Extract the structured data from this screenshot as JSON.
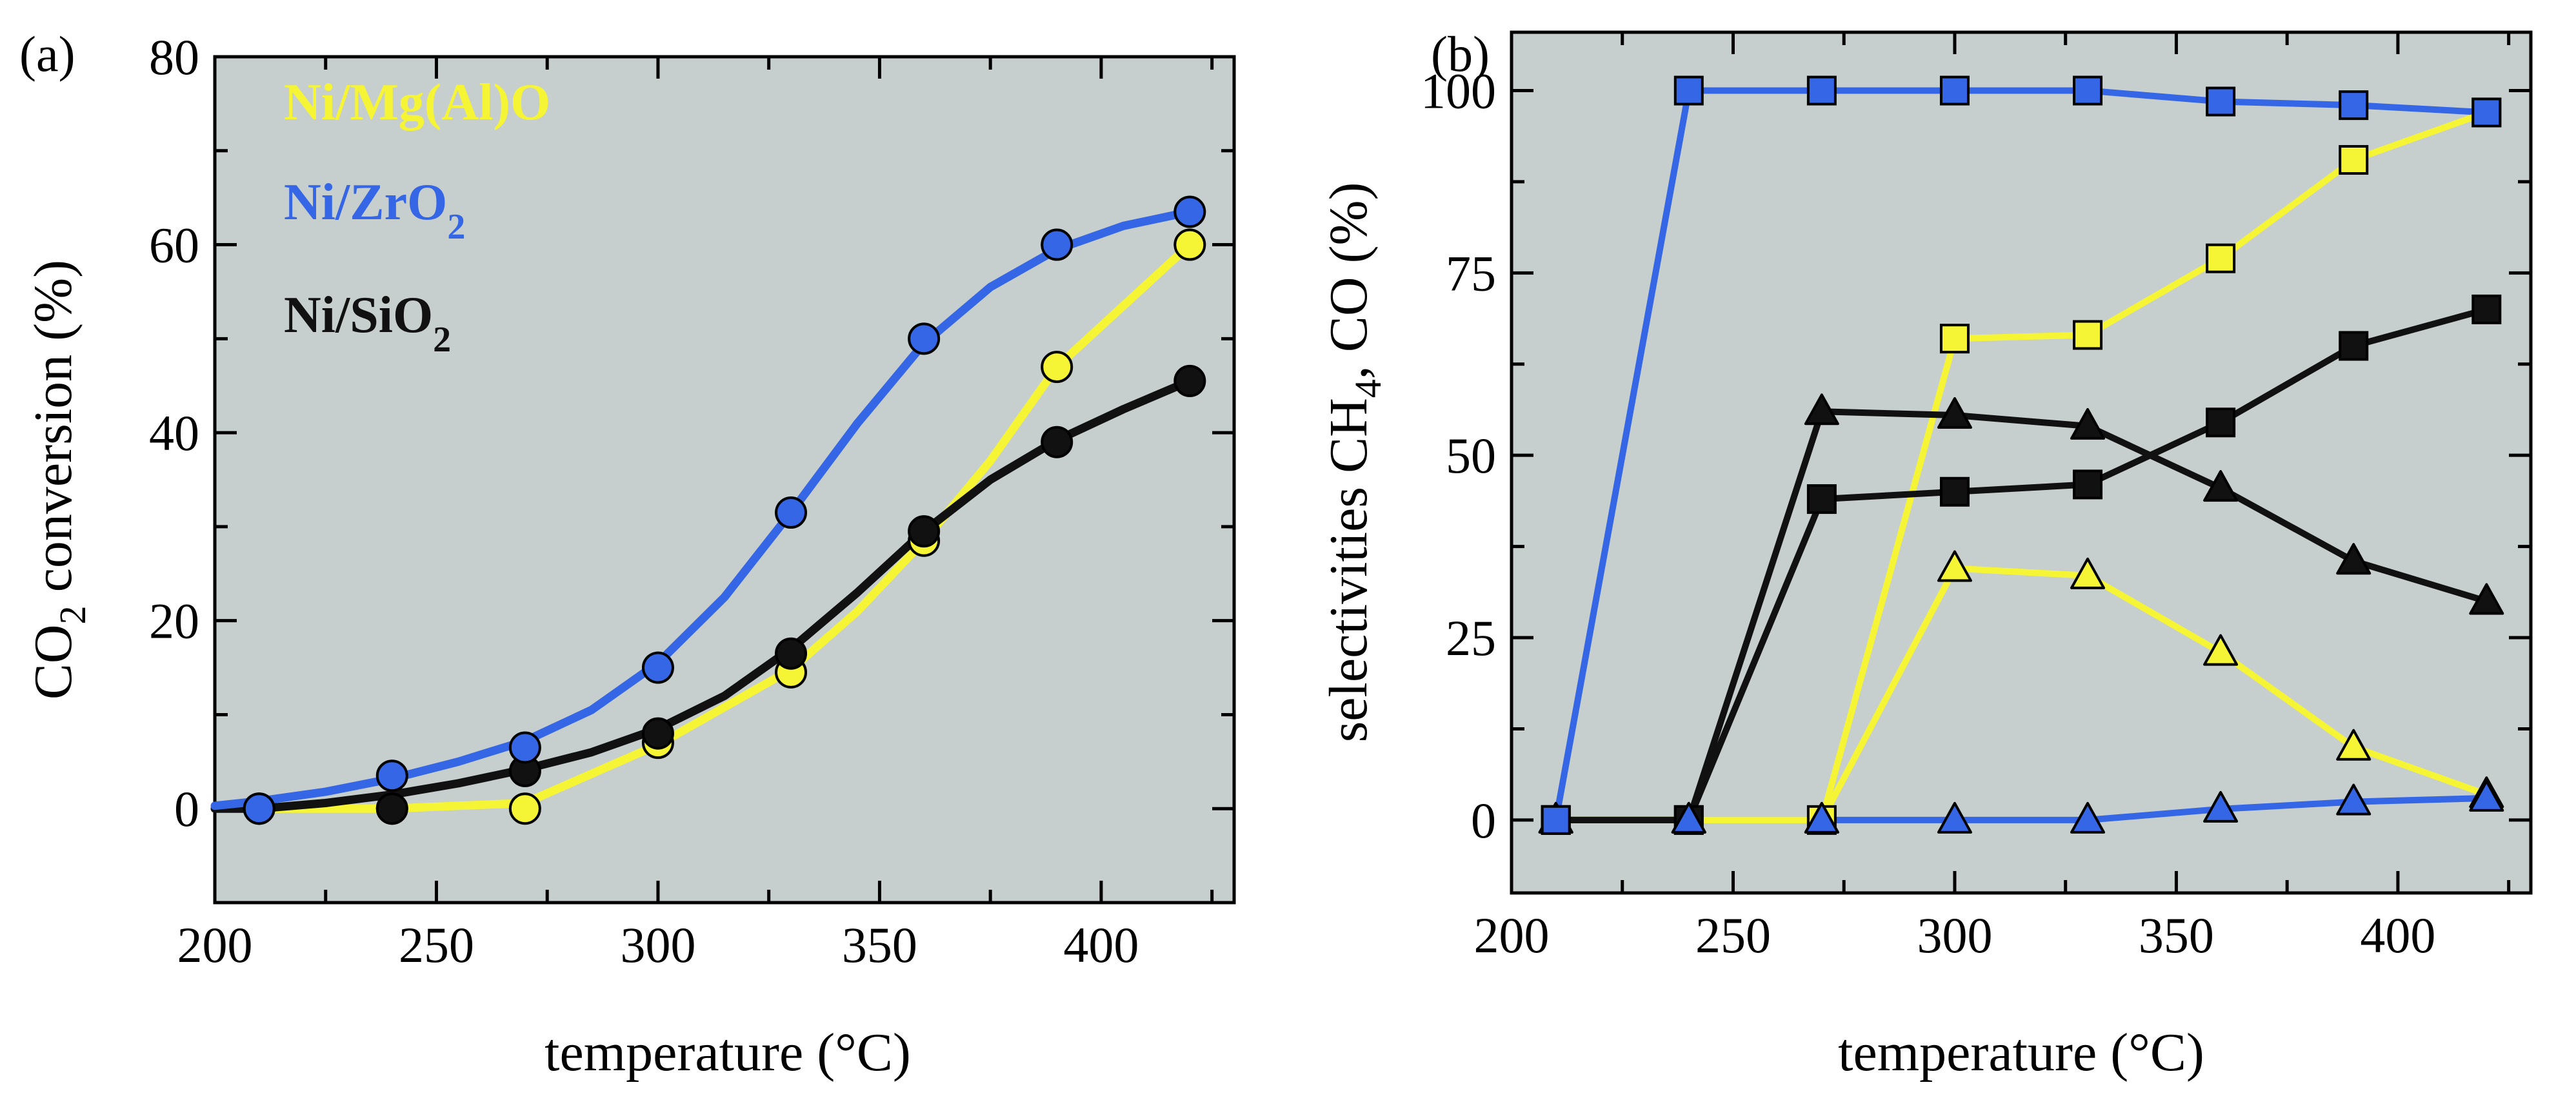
{
  "colors": {
    "plot_background": "#c6cfcd",
    "yellow": "#f5f535",
    "blue": "#3566e6",
    "black": "#111111",
    "axis": "#000000"
  },
  "chart_data": [
    {
      "type": "line",
      "panel_label": "(a)",
      "xlabel": "temperature (°C)",
      "ylabel_parts": [
        "CO",
        "2",
        " conversion (%)"
      ],
      "xlim": [
        200,
        430
      ],
      "ylim": [
        -10,
        80
      ],
      "xticks": [
        200,
        250,
        300,
        350,
        400
      ],
      "yticks": [
        0,
        20,
        40,
        60,
        80
      ],
      "legend": [
        {
          "text": "Ni/Mg(Al)O",
          "sub": "",
          "color_key": "yellow"
        },
        {
          "text": "Ni/ZrO",
          "sub": "2",
          "color_key": "blue"
        },
        {
          "text": "Ni/SiO",
          "sub": "2",
          "color_key": "black"
        }
      ],
      "series": [
        {
          "name": "Ni/Mg(Al)O",
          "color_key": "yellow",
          "marker": "circle",
          "x": [
            210,
            240,
            270,
            300,
            330,
            360,
            390,
            420
          ],
          "values": [
            0,
            0,
            0,
            7,
            14.5,
            28.5,
            47,
            60
          ],
          "curve": [
            [
              210,
              0
            ],
            [
              240,
              0
            ],
            [
              270,
              0.6
            ],
            [
              300,
              6.8
            ],
            [
              330,
              14.8
            ],
            [
              345,
              21
            ],
            [
              360,
              28.5
            ],
            [
              375,
              37
            ],
            [
              390,
              47
            ],
            [
              405,
              53.5
            ],
            [
              420,
              60
            ]
          ]
        },
        {
          "name": "Ni/SiO2",
          "color_key": "black",
          "marker": "circle",
          "x": [
            210,
            240,
            270,
            300,
            330,
            360,
            390,
            420
          ],
          "values": [
            0,
            0,
            4,
            8,
            16.5,
            29.5,
            39,
            45.5
          ],
          "curve": [
            [
              200,
              0
            ],
            [
              210,
              0
            ],
            [
              225,
              0.6
            ],
            [
              240,
              1.5
            ],
            [
              255,
              2.7
            ],
            [
              270,
              4.2
            ],
            [
              285,
              6
            ],
            [
              300,
              8.5
            ],
            [
              315,
              12
            ],
            [
              330,
              17
            ],
            [
              345,
              23
            ],
            [
              360,
              29.5
            ],
            [
              375,
              35
            ],
            [
              390,
              39.2
            ],
            [
              405,
              42.5
            ],
            [
              420,
              45.5
            ]
          ]
        },
        {
          "name": "Ni/ZrO2",
          "color_key": "blue",
          "marker": "circle",
          "x": [
            210,
            240,
            270,
            300,
            330,
            360,
            390,
            420
          ],
          "values": [
            0,
            3.5,
            6.5,
            15,
            31.5,
            50,
            60,
            63.5
          ],
          "curve": [
            [
              200,
              0.3
            ],
            [
              210,
              0.8
            ],
            [
              225,
              1.8
            ],
            [
              240,
              3.2
            ],
            [
              255,
              5
            ],
            [
              270,
              7.2
            ],
            [
              285,
              10.5
            ],
            [
              300,
              15.5
            ],
            [
              315,
              22.5
            ],
            [
              330,
              31.5
            ],
            [
              345,
              41
            ],
            [
              360,
              49.5
            ],
            [
              375,
              55.5
            ],
            [
              390,
              59.5
            ],
            [
              405,
              62
            ],
            [
              420,
              63.5
            ]
          ]
        }
      ]
    },
    {
      "type": "line",
      "panel_label": "(b)",
      "xlabel": "temperature (°C)",
      "ylabel_parts": [
        "selectivities CH",
        "4",
        ", CO (%)"
      ],
      "xlim": [
        200,
        430
      ],
      "ylim": [
        -10,
        108
      ],
      "xticks": [
        200,
        250,
        300,
        350,
        400
      ],
      "yticks": [
        0,
        25,
        50,
        75,
        100
      ],
      "series": [
        {
          "name": "Ni/ZrO2 CH4",
          "color_key": "blue",
          "marker": "square",
          "x": [
            210,
            240,
            270,
            300,
            330,
            360,
            390,
            420
          ],
          "values": [
            0,
            100,
            100,
            100,
            100,
            98.5,
            98,
            97
          ]
        },
        {
          "name": "Ni/ZrO2 CO",
          "color_key": "blue",
          "marker": "triangle",
          "x": [
            210,
            240,
            270,
            300,
            330,
            360,
            390,
            420
          ],
          "values": [
            0,
            0,
            0,
            0,
            0,
            1.5,
            2.5,
            3
          ]
        },
        {
          "name": "Ni/Mg(Al)O CH4",
          "color_key": "yellow",
          "marker": "square",
          "x": [
            210,
            240,
            270,
            300,
            330,
            360,
            390,
            420
          ],
          "values": [
            0,
            0,
            0,
            66,
            66.5,
            77,
            90.5,
            97
          ]
        },
        {
          "name": "Ni/Mg(Al)O CO",
          "color_key": "yellow",
          "marker": "triangle",
          "x": [
            210,
            240,
            270,
            300,
            330,
            360,
            390,
            420
          ],
          "values": [
            0,
            0,
            0,
            34.5,
            33.5,
            23,
            10,
            3.5
          ]
        },
        {
          "name": "Ni/SiO2 CH4",
          "color_key": "black",
          "marker": "square",
          "x": [
            210,
            240,
            270,
            300,
            330,
            360,
            390,
            420
          ],
          "values": [
            0,
            0,
            44,
            45,
            46,
            54.5,
            65,
            70
          ]
        },
        {
          "name": "Ni/SiO2 CO",
          "color_key": "black",
          "marker": "triangle",
          "x": [
            210,
            240,
            270,
            300,
            330,
            360,
            390,
            420
          ],
          "values": [
            0,
            0,
            56,
            55.5,
            54,
            45.5,
            35.5,
            30
          ]
        }
      ]
    }
  ]
}
